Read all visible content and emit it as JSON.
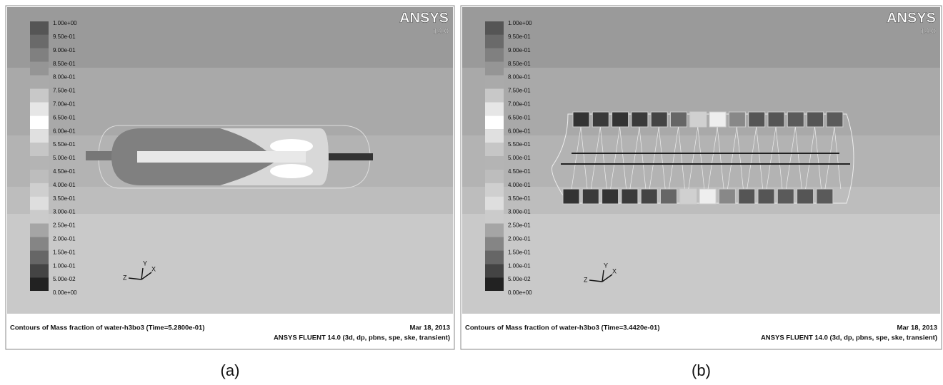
{
  "panels": [
    {
      "logo": "ANSYS",
      "version": "14.0",
      "legend": [
        "1.00e+00",
        "9.50e-01",
        "9.00e-01",
        "8.50e-01",
        "8.00e-01",
        "7.50e-01",
        "7.00e-01",
        "6.50e-01",
        "6.00e-01",
        "5.50e-01",
        "5.00e-01",
        "4.50e-01",
        "4.00e-01",
        "3.50e-01",
        "3.00e-01",
        "2.50e-01",
        "2.00e-01",
        "1.50e-01",
        "1.00e-01",
        "5.00e-02",
        "0.00e+00"
      ],
      "axes": [
        "Y",
        "Z",
        "X"
      ],
      "caption": "Contours of Mass fraction of water-h3bo3  (Time=5.2800e-01)",
      "date": "Mar 18, 2013",
      "solver": "ANSYS FLUENT 14.0 (3d, dp, pbns, spe, ske, transient)",
      "label": "(a)"
    },
    {
      "logo": "ANSYS",
      "version": "14.0",
      "legend": [
        "1.00e+00",
        "9.50e-01",
        "9.00e-01",
        "8.50e-01",
        "8.00e-01",
        "7.50e-01",
        "7.00e-01",
        "6.50e-01",
        "6.00e-01",
        "5.50e-01",
        "5.00e-01",
        "4.50e-01",
        "4.00e-01",
        "3.50e-01",
        "3.00e-01",
        "2.50e-01",
        "2.00e-01",
        "1.50e-01",
        "1.00e-01",
        "5.00e-02",
        "0.00e+00"
      ],
      "axes": [
        "Y",
        "Z",
        "X"
      ],
      "caption": "Contours of Mass fraction of water-h3bo3  (Time=3.4420e-01)",
      "date": "Mar 18, 2013",
      "solver": "ANSYS FLUENT 14.0 (3d, dp, pbns, spe, ske, transient)",
      "label": "(b)"
    }
  ]
}
